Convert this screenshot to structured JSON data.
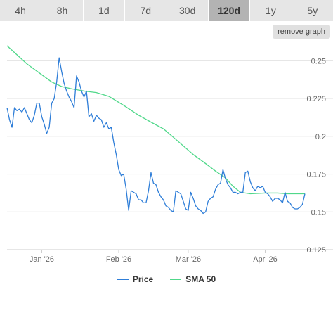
{
  "tabs": [
    {
      "label": "4h",
      "active": false
    },
    {
      "label": "8h",
      "active": false
    },
    {
      "label": "1d",
      "active": false
    },
    {
      "label": "7d",
      "active": false
    },
    {
      "label": "30d",
      "active": false
    },
    {
      "label": "120d",
      "active": true
    },
    {
      "label": "1y",
      "active": false
    },
    {
      "label": "5y",
      "active": false
    }
  ],
  "remove_graph_label": "remove graph",
  "chart_data": {
    "type": "line",
    "x_unit": "date",
    "x_range": [
      "2025-12-18",
      "2026-04-17"
    ],
    "ylim": [
      0.125,
      0.26
    ],
    "y_ticks": [
      "0.125",
      "0.15",
      "0.175",
      "0.2",
      "0.225",
      "0.25"
    ],
    "x_ticks": [
      {
        "date": "2026-01-01",
        "label": "Jan '26"
      },
      {
        "date": "2026-02-01",
        "label": "Feb '26"
      },
      {
        "date": "2026-03-01",
        "label": "Mar '26"
      },
      {
        "date": "2026-04-01",
        "label": "Apr '26"
      }
    ],
    "grid": true,
    "legend": "bottom-center",
    "series": [
      {
        "name": "Price",
        "color": "#2f7ed8",
        "points": [
          [
            "2025-12-18",
            0.219
          ],
          [
            "2025-12-19",
            0.211
          ],
          [
            "2025-12-20",
            0.206
          ],
          [
            "2025-12-21",
            0.219
          ],
          [
            "2025-12-22",
            0.217
          ],
          [
            "2025-12-23",
            0.218
          ],
          [
            "2025-12-24",
            0.216
          ],
          [
            "2025-12-25",
            0.219
          ],
          [
            "2025-12-26",
            0.215
          ],
          [
            "2025-12-27",
            0.211
          ],
          [
            "2025-12-28",
            0.209
          ],
          [
            "2025-12-29",
            0.214
          ],
          [
            "2025-12-30",
            0.222
          ],
          [
            "2025-12-31",
            0.222
          ],
          [
            "2026-01-01",
            0.213
          ],
          [
            "2026-01-02",
            0.208
          ],
          [
            "2026-01-03",
            0.202
          ],
          [
            "2026-01-04",
            0.206
          ],
          [
            "2026-01-05",
            0.222
          ],
          [
            "2026-01-06",
            0.225
          ],
          [
            "2026-01-07",
            0.236
          ],
          [
            "2026-01-08",
            0.252
          ],
          [
            "2026-01-09",
            0.243
          ],
          [
            "2026-01-10",
            0.235
          ],
          [
            "2026-01-11",
            0.23
          ],
          [
            "2026-01-12",
            0.226
          ],
          [
            "2026-01-13",
            0.223
          ],
          [
            "2026-01-14",
            0.219
          ],
          [
            "2026-01-15",
            0.24
          ],
          [
            "2026-01-16",
            0.236
          ],
          [
            "2026-01-17",
            0.23
          ],
          [
            "2026-01-18",
            0.226
          ],
          [
            "2026-01-19",
            0.23
          ],
          [
            "2026-01-20",
            0.213
          ],
          [
            "2026-01-21",
            0.215
          ],
          [
            "2026-01-22",
            0.21
          ],
          [
            "2026-01-23",
            0.214
          ],
          [
            "2026-01-24",
            0.212
          ],
          [
            "2026-01-25",
            0.211
          ],
          [
            "2026-01-26",
            0.206
          ],
          [
            "2026-01-27",
            0.209
          ],
          [
            "2026-01-28",
            0.205
          ],
          [
            "2026-01-29",
            0.206
          ],
          [
            "2026-01-30",
            0.196
          ],
          [
            "2026-01-31",
            0.188
          ],
          [
            "2026-02-01",
            0.178
          ],
          [
            "2026-02-02",
            0.174
          ],
          [
            "2026-02-03",
            0.175
          ],
          [
            "2026-02-04",
            0.165
          ],
          [
            "2026-02-05",
            0.151
          ],
          [
            "2026-02-06",
            0.164
          ],
          [
            "2026-02-07",
            0.163
          ],
          [
            "2026-02-08",
            0.162
          ],
          [
            "2026-02-09",
            0.158
          ],
          [
            "2026-02-10",
            0.158
          ],
          [
            "2026-02-11",
            0.156
          ],
          [
            "2026-02-12",
            0.156
          ],
          [
            "2026-02-13",
            0.164
          ],
          [
            "2026-02-14",
            0.176
          ],
          [
            "2026-02-15",
            0.169
          ],
          [
            "2026-02-16",
            0.168
          ],
          [
            "2026-02-17",
            0.163
          ],
          [
            "2026-02-18",
            0.16
          ],
          [
            "2026-02-19",
            0.158
          ],
          [
            "2026-02-20",
            0.154
          ],
          [
            "2026-02-21",
            0.153
          ],
          [
            "2026-02-22",
            0.151
          ],
          [
            "2026-02-23",
            0.15
          ],
          [
            "2026-02-24",
            0.164
          ],
          [
            "2026-02-25",
            0.163
          ],
          [
            "2026-02-26",
            0.162
          ],
          [
            "2026-02-27",
            0.157
          ],
          [
            "2026-02-28",
            0.152
          ],
          [
            "2026-03-01",
            0.151
          ],
          [
            "2026-03-02",
            0.163
          ],
          [
            "2026-03-03",
            0.159
          ],
          [
            "2026-03-04",
            0.154
          ],
          [
            "2026-03-05",
            0.152
          ],
          [
            "2026-03-06",
            0.151
          ],
          [
            "2026-03-07",
            0.149
          ],
          [
            "2026-03-08",
            0.15
          ],
          [
            "2026-03-09",
            0.157
          ],
          [
            "2026-03-10",
            0.159
          ],
          [
            "2026-03-11",
            0.16
          ],
          [
            "2026-03-12",
            0.165
          ],
          [
            "2026-03-13",
            0.168
          ],
          [
            "2026-03-14",
            0.169
          ],
          [
            "2026-03-15",
            0.178
          ],
          [
            "2026-03-16",
            0.172
          ],
          [
            "2026-03-17",
            0.168
          ],
          [
            "2026-03-18",
            0.166
          ],
          [
            "2026-03-19",
            0.163
          ],
          [
            "2026-03-20",
            0.163
          ],
          [
            "2026-03-21",
            0.162
          ],
          [
            "2026-03-22",
            0.163
          ],
          [
            "2026-03-23",
            0.163
          ],
          [
            "2026-03-24",
            0.176
          ],
          [
            "2026-03-25",
            0.177
          ],
          [
            "2026-03-26",
            0.17
          ],
          [
            "2026-03-27",
            0.166
          ],
          [
            "2026-03-28",
            0.164
          ],
          [
            "2026-03-29",
            0.167
          ],
          [
            "2026-03-30",
            0.166
          ],
          [
            "2026-03-31",
            0.167
          ],
          [
            "2026-04-01",
            0.163
          ],
          [
            "2026-04-02",
            0.162
          ],
          [
            "2026-04-03",
            0.16
          ],
          [
            "2026-04-04",
            0.157
          ],
          [
            "2026-04-05",
            0.159
          ],
          [
            "2026-04-06",
            0.159
          ],
          [
            "2026-04-07",
            0.158
          ],
          [
            "2026-04-08",
            0.156
          ],
          [
            "2026-04-09",
            0.163
          ],
          [
            "2026-04-10",
            0.157
          ],
          [
            "2026-04-11",
            0.156
          ],
          [
            "2026-04-12",
            0.153
          ],
          [
            "2026-04-13",
            0.152
          ],
          [
            "2026-04-14",
            0.152
          ],
          [
            "2026-04-15",
            0.153
          ],
          [
            "2026-04-16",
            0.155
          ],
          [
            "2026-04-17",
            0.162
          ]
        ]
      },
      {
        "name": "SMA 50",
        "color": "#50d88a",
        "points": [
          [
            "2025-12-18",
            0.26
          ],
          [
            "2025-12-22",
            0.254
          ],
          [
            "2025-12-26",
            0.248
          ],
          [
            "2025-12-31",
            0.242
          ],
          [
            "2026-01-05",
            0.236
          ],
          [
            "2026-01-09",
            0.233
          ],
          [
            "2026-01-13",
            0.2315
          ],
          [
            "2026-01-18",
            0.23
          ],
          [
            "2026-01-23",
            0.229
          ],
          [
            "2026-01-28",
            0.2265
          ],
          [
            "2026-02-03",
            0.2205
          ],
          [
            "2026-02-09",
            0.214
          ],
          [
            "2026-02-15",
            0.2085
          ],
          [
            "2026-02-19",
            0.205
          ],
          [
            "2026-02-24",
            0.198
          ],
          [
            "2026-03-03",
            0.188
          ],
          [
            "2026-03-08",
            0.182
          ],
          [
            "2026-03-12",
            0.177
          ],
          [
            "2026-03-16",
            0.1725
          ],
          [
            "2026-03-19",
            0.167
          ],
          [
            "2026-03-22",
            0.163
          ],
          [
            "2026-03-26",
            0.162
          ],
          [
            "2026-04-01",
            0.1625
          ],
          [
            "2026-04-06",
            0.1625
          ],
          [
            "2026-04-10",
            0.162
          ],
          [
            "2026-04-17",
            0.162
          ]
        ]
      }
    ]
  }
}
